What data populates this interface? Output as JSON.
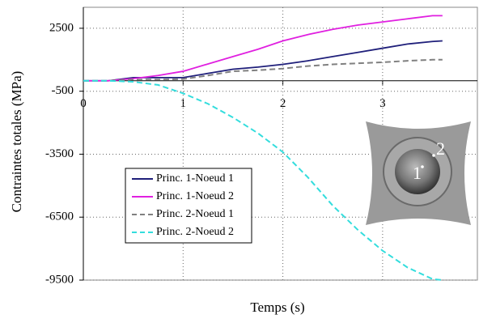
{
  "chart_data": {
    "type": "line",
    "x_label": "Temps (s)",
    "y_label": "Contraintes totales (MPa)",
    "x": [
      0,
      0.25,
      0.5,
      0.75,
      1,
      1.25,
      1.5,
      1.75,
      2,
      2.25,
      2.5,
      2.75,
      3,
      3.25,
      3.5,
      3.6
    ],
    "series": [
      {
        "name": "Princ. 1-Noeud 1",
        "color": "#1f1f7a",
        "dashed": false,
        "values": [
          0,
          0,
          150,
          150,
          150,
          350,
          550,
          650,
          780,
          950,
          1150,
          1350,
          1550,
          1750,
          1870,
          1900
        ]
      },
      {
        "name": "Princ. 1-Noeud 2",
        "color": "#e020e0",
        "dashed": false,
        "values": [
          0,
          0,
          100,
          250,
          450,
          800,
          1150,
          1500,
          1900,
          2200,
          2450,
          2650,
          2800,
          2950,
          3100,
          3100
        ]
      },
      {
        "name": "Princ. 2-Noeud 1",
        "color": "#808080",
        "dashed": true,
        "values": [
          0,
          0,
          50,
          50,
          80,
          250,
          450,
          500,
          580,
          700,
          780,
          830,
          880,
          950,
          1000,
          1000
        ]
      },
      {
        "name": "Princ. 2-Noeud 2",
        "color": "#33dddd",
        "dashed": true,
        "values": [
          0,
          0,
          -50,
          -200,
          -600,
          -1100,
          -1750,
          -2500,
          -3400,
          -4600,
          -5950,
          -7100,
          -8100,
          -8900,
          -9450,
          -9500
        ]
      }
    ],
    "xlim": [
      0,
      3.95
    ],
    "ylim": [
      -9500,
      3500
    ],
    "xticks": [
      0,
      1,
      2,
      3
    ],
    "yticks": [
      2500,
      -500,
      -3500,
      -6500,
      -9500
    ],
    "grid": true,
    "annotations": [
      "1",
      "2"
    ]
  }
}
